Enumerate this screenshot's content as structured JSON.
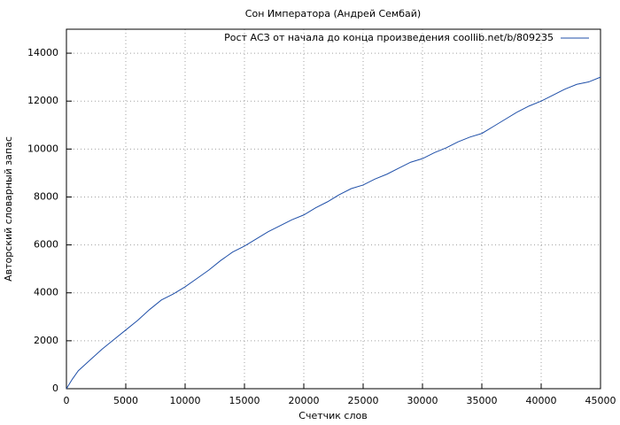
{
  "chart_data": {
    "type": "line",
    "title": "Сон Императора (Андрей Сембай)",
    "x_label": "Счетчик слов",
    "y_label": "Авторский словарный запас",
    "x": [
      0,
      500,
      1000,
      2000,
      3000,
      4000,
      5000,
      6000,
      7000,
      8000,
      9000,
      10000,
      11000,
      12000,
      13000,
      14000,
      15000,
      16000,
      17000,
      18000,
      19000,
      20000,
      21000,
      22000,
      23000,
      24000,
      25000,
      26000,
      27000,
      28000,
      29000,
      30000,
      31000,
      32000,
      33000,
      34000,
      35000,
      36000,
      37000,
      38000,
      39000,
      40000,
      41000,
      42000,
      43000,
      44000,
      45000
    ],
    "series": [
      {
        "name": "Рост АСЗ от начала до конца произведения coollib.net/b/809235",
        "color": "#1f4fa8",
        "values": [
          0,
          400,
          750,
          1200,
          1650,
          2050,
          2450,
          2850,
          3300,
          3700,
          3950,
          4250,
          4600,
          4950,
          5350,
          5700,
          5950,
          6250,
          6550,
          6800,
          7050,
          7250,
          7550,
          7800,
          8100,
          8350,
          8500,
          8750,
          8950,
          9200,
          9450,
          9600,
          9850,
          10050,
          10300,
          10500,
          10650,
          10950,
          11250,
          11550,
          11800,
          12000,
          12250,
          12500,
          12700,
          12800,
          13000
        ]
      }
    ],
    "xlim": [
      0,
      45000
    ],
    "ylim": [
      0,
      15000
    ],
    "xticks": [
      0,
      5000,
      10000,
      15000,
      20000,
      25000,
      30000,
      35000,
      40000,
      45000
    ],
    "yticks": [
      0,
      2000,
      4000,
      6000,
      8000,
      10000,
      12000,
      14000
    ],
    "grid": true,
    "legend_position": "top-right"
  }
}
